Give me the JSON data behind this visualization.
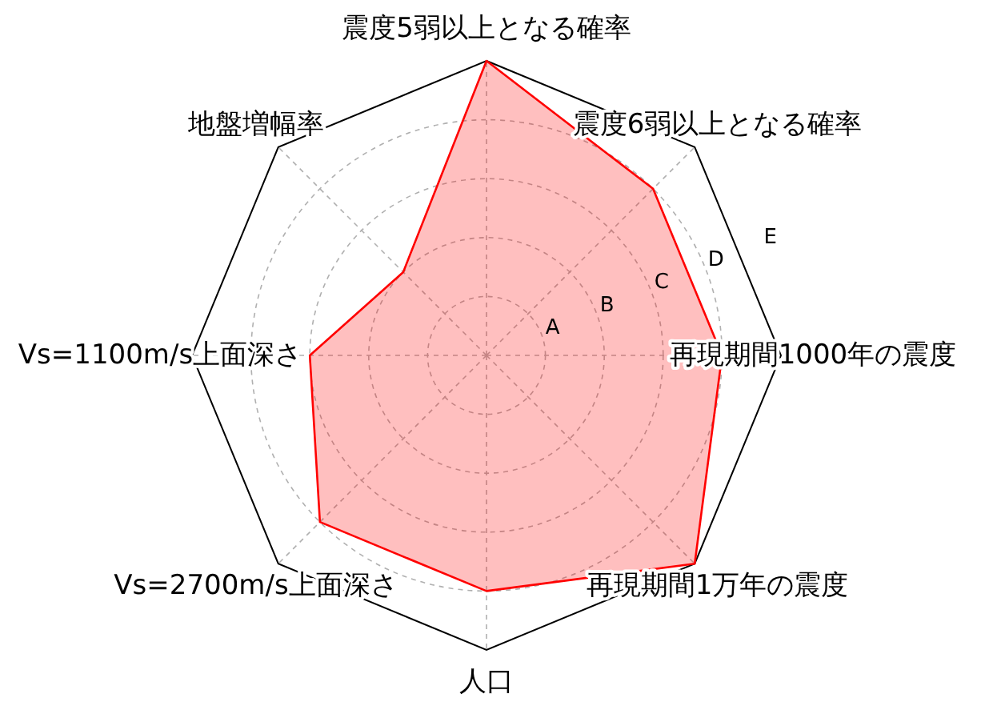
{
  "chart_data": {
    "type": "radar",
    "categories": [
      "震度5弱以上となる確率",
      "震度6弱以上となる確率",
      "再現期間1000年の震度",
      "再現期間1万年の震度",
      "人口",
      "Vs=2700m/s上面深さ",
      "Vs=1100m/s上面深さ",
      "地盤増幅率"
    ],
    "series": [
      {
        "color": "#ff0000",
        "values": [
          5,
          4,
          4,
          5,
          4,
          4,
          3,
          2
        ]
      }
    ],
    "ylim": [
      0,
      5
    ],
    "yticks": [
      {
        "value": 1,
        "label": "A"
      },
      {
        "value": 2,
        "label": "B"
      },
      {
        "value": 3,
        "label": "C"
      },
      {
        "value": 4,
        "label": "D"
      },
      {
        "value": 5,
        "label": "E"
      }
    ],
    "grid": true
  }
}
